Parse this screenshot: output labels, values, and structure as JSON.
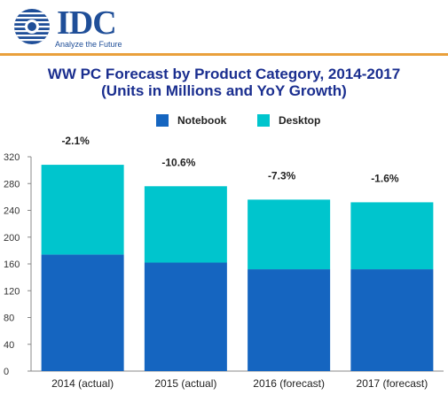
{
  "brand": {
    "name": "IDC",
    "tagline": "Analyze the Future",
    "color": "#1f4e98",
    "rule_color": "#e9a03b"
  },
  "title_line1": "WW PC Forecast by Product Category, 2014-2017",
  "title_line2": "(Units in Millions and YoY Growth)",
  "chart_data": {
    "type": "bar",
    "stacked": true,
    "categories": [
      "2014 (actual)",
      "2015 (actual)",
      "2016 (forecast)",
      "2017 (forecast)"
    ],
    "series": [
      {
        "name": "Notebook",
        "color": "#1565c0",
        "values": [
          174,
          162,
          152,
          152
        ]
      },
      {
        "name": "Desktop",
        "color": "#00c5cd",
        "values": [
          134,
          114,
          104,
          100
        ]
      }
    ],
    "annotations": [
      "-2.1%",
      "-10.6%",
      "-7.3%",
      "-1.6%"
    ],
    "ylim": [
      0,
      320
    ],
    "yticks": [
      0,
      40,
      80,
      120,
      160,
      200,
      240,
      280,
      320
    ],
    "grid": false,
    "legend": "top-center"
  }
}
